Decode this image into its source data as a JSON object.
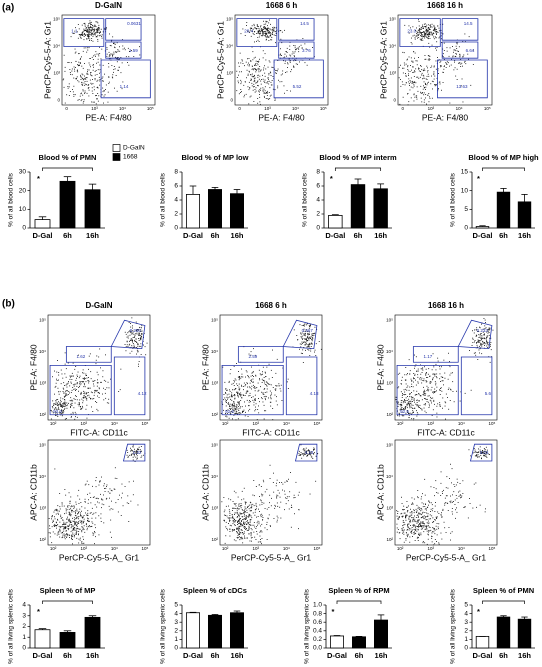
{
  "panel_labels": [
    "(a)",
    "(b)"
  ],
  "flow_plots": [
    {
      "title": "D-GalN",
      "xlabel": "PE-A: F4/80",
      "ylabel": "PerCP-Cy5-5-A: Gr1",
      "xtick_labels": [
        "0",
        "10³",
        "10⁴",
        "10⁵"
      ],
      "ytick_labels": [
        "0",
        "10³",
        "10⁴",
        "10⁵"
      ],
      "gates": [
        "1.1",
        "0.0631",
        "1.59",
        "1.14"
      ]
    },
    {
      "title": "1668   6 h",
      "xlabel": "PE-A: F4/80",
      "ylabel": "PerCP-Cy5-5-A: Gr1",
      "xtick_labels": [
        "0",
        "10³",
        "10⁴",
        "10⁵"
      ],
      "ytick_labels": [
        "0",
        "10³",
        "10⁴",
        "10⁵"
      ],
      "gates": [
        "20.4",
        "14.5",
        "3.76",
        "5.52"
      ]
    },
    {
      "title": "1668   16 h",
      "xlabel": "PE-A: F4/80",
      "ylabel": "PerCP-Cy5-5-A: Gr1",
      "xtick_labels": [
        "0",
        "10³",
        "10⁴",
        "10⁵"
      ],
      "ytick_labels": [
        "0",
        "10³",
        "10⁴",
        "10⁵"
      ],
      "gates": [
        "23.0",
        "14.5",
        "6.64",
        "13.63"
      ]
    },
    {
      "title": "D-GalN",
      "xlabel": "FITC-A: CD11c",
      "ylabel": "PE-A: F4/80",
      "xtick_labels": [
        "10²",
        "10³",
        "10⁴",
        "10⁵"
      ],
      "ytick_labels": [
        "10²",
        "10³",
        "10⁴",
        "10⁵"
      ],
      "gates": [
        "0.285",
        "1.62",
        "4.12",
        "93.3"
      ]
    },
    {
      "title": "1668   6 h",
      "xlabel": "FITC-A: CD11c",
      "ylabel": "PE-A: F4/80",
      "xtick_labels": [
        "10²",
        "10³",
        "10⁴",
        "10⁵"
      ],
      "ytick_labels": [
        "10²",
        "10³",
        "10⁴",
        "10⁵"
      ],
      "gates": [
        "0.567",
        "2.59",
        "4.18",
        "92.6"
      ]
    },
    {
      "title": "1668   16 h",
      "xlabel": "FITC-A: CD11c",
      "ylabel": "PE-A: F4/80",
      "xtick_labels": [
        "10²",
        "10³",
        "10⁴",
        "10⁵"
      ],
      "ytick_labels": [
        "10²",
        "10³",
        "10⁴",
        "10⁵"
      ],
      "gates": [
        "0.233",
        "1.17",
        "5.6",
        "92.5"
      ]
    },
    {
      "xlabel": "PerCP-Cy5-5-A_ Gr1",
      "ylabel": "APC-A: CD11b",
      "xtick_labels": [
        "10²",
        "10³",
        "10⁴",
        "10⁵"
      ],
      "ytick_labels": [
        "10²",
        "10³",
        "10⁴",
        "10⁵"
      ],
      "gates": [
        "1.32"
      ]
    },
    {
      "xlabel": "PerCP-Cy5-5-A_ Gr1",
      "ylabel": "APC-A: CD11b",
      "xtick_labels": [
        "10²",
        "10³",
        "10⁴",
        "10⁵"
      ],
      "ytick_labels": [
        "10²",
        "10³",
        "10⁴",
        "10⁵"
      ],
      "gates": [
        "4.33"
      ]
    },
    {
      "xlabel": "PerCP-Cy5-5-A_ Gr1",
      "ylabel": "APC-A: CD11b",
      "xtick_labels": [
        "10²",
        "10³",
        "10⁴",
        "10⁵"
      ],
      "ytick_labels": [
        "10²",
        "10³",
        "10⁴",
        "10⁵"
      ],
      "gates": [
        "3.03"
      ]
    }
  ],
  "chart_data": [
    {
      "type": "bar",
      "title": "Blood % of PMN",
      "ylabel": "% of all blood cells",
      "categories": [
        "D-Gal",
        "6h",
        "16h"
      ],
      "values": [
        4.5,
        25,
        20.5
      ],
      "errors": [
        1.5,
        2.5,
        3
      ],
      "colors": [
        "#ffffff",
        "#000000",
        "#000000"
      ],
      "ylim": [
        0,
        30
      ],
      "yticks": [
        0,
        10,
        20,
        30
      ],
      "annotation": "*",
      "legend": [
        {
          "name": "D-GalN",
          "color": "#ffffff"
        },
        {
          "name": "1668",
          "color": "#000000"
        }
      ]
    },
    {
      "type": "bar",
      "title": "Blood % of MP low",
      "ylabel": "% of all blood cells",
      "categories": [
        "D-Gal",
        "6h",
        "16h"
      ],
      "values": [
        4.8,
        5.5,
        4.9
      ],
      "errors": [
        1.2,
        0.3,
        0.6
      ],
      "colors": [
        "#ffffff",
        "#000000",
        "#000000"
      ],
      "ylim": [
        0,
        8
      ],
      "yticks": [
        0,
        2,
        4,
        6,
        8
      ]
    },
    {
      "type": "bar",
      "title": "Blood % of MP interm",
      "ylabel": "% of all blood cells",
      "categories": [
        "D-Gal",
        "6h",
        "16h"
      ],
      "values": [
        1.8,
        6.2,
        5.6
      ],
      "errors": [
        0.1,
        0.8,
        0.7
      ],
      "colors": [
        "#ffffff",
        "#000000",
        "#000000"
      ],
      "ylim": [
        0,
        8
      ],
      "yticks": [
        0,
        2,
        4,
        6,
        8
      ],
      "annotation": "*"
    },
    {
      "type": "bar",
      "title": "Blood % of MP high",
      "ylabel": "% of all blood cells",
      "categories": [
        "D-Gal",
        "6h",
        "16h"
      ],
      "values": [
        0.4,
        9.6,
        7
      ],
      "errors": [
        0.2,
        1,
        2
      ],
      "colors": [
        "#ffffff",
        "#000000",
        "#000000"
      ],
      "ylim": [
        0,
        15
      ],
      "yticks": [
        0,
        5,
        10,
        15
      ],
      "annotation": "*"
    },
    {
      "type": "bar",
      "title": "Spleen % of MP",
      "ylabel": "% of all living splenic cells",
      "categories": [
        "D-Gal",
        "6h",
        "16h"
      ],
      "values": [
        1.7,
        1.45,
        2.85
      ],
      "errors": [
        0.1,
        0.15,
        0.15
      ],
      "colors": [
        "#ffffff",
        "#000000",
        "#000000"
      ],
      "ylim": [
        0,
        4
      ],
      "yticks": [
        0,
        1,
        2,
        3,
        4
      ],
      "annotation": "*"
    },
    {
      "type": "bar",
      "title": "Spleen % of cDCs",
      "ylabel": "% of all living splenic cells",
      "categories": [
        "D-Gal",
        "6h",
        "16h"
      ],
      "values": [
        4.1,
        3.8,
        4.1
      ],
      "errors": [
        0.05,
        0.1,
        0.2
      ],
      "colors": [
        "#ffffff",
        "#000000",
        "#000000"
      ],
      "ylim": [
        0,
        5
      ],
      "yticks": [
        0,
        1,
        2,
        3,
        4,
        5
      ]
    },
    {
      "type": "bar",
      "title": "Spleen % of RPM",
      "ylabel": "% of all living splenic cells",
      "categories": [
        "D-Gal",
        "6h",
        "16h"
      ],
      "values": [
        0.28,
        0.26,
        0.65
      ],
      "errors": [
        0.01,
        0.01,
        0.12
      ],
      "colors": [
        "#ffffff",
        "#000000",
        "#000000"
      ],
      "ylim": [
        0,
        1
      ],
      "yticks": [
        {
          "value": 0,
          "label": "0.0"
        },
        0.2,
        0.4,
        0.6,
        0.8,
        {
          "value": 1,
          "label": "1.0"
        }
      ],
      "annotation": "*"
    },
    {
      "type": "bar",
      "title": "Spleen % of PMN",
      "ylabel": "% of all living splenic cells",
      "categories": [
        "D-Gal",
        "6h",
        "16h"
      ],
      "values": [
        1.35,
        3.6,
        3.35
      ],
      "errors": [
        0,
        0.15,
        0.25
      ],
      "colors": [
        "#ffffff",
        "#000000",
        "#000000"
      ],
      "ylim": [
        0,
        5
      ],
      "yticks": [
        0,
        1,
        2,
        3,
        4,
        5
      ],
      "annotation": "*"
    }
  ]
}
